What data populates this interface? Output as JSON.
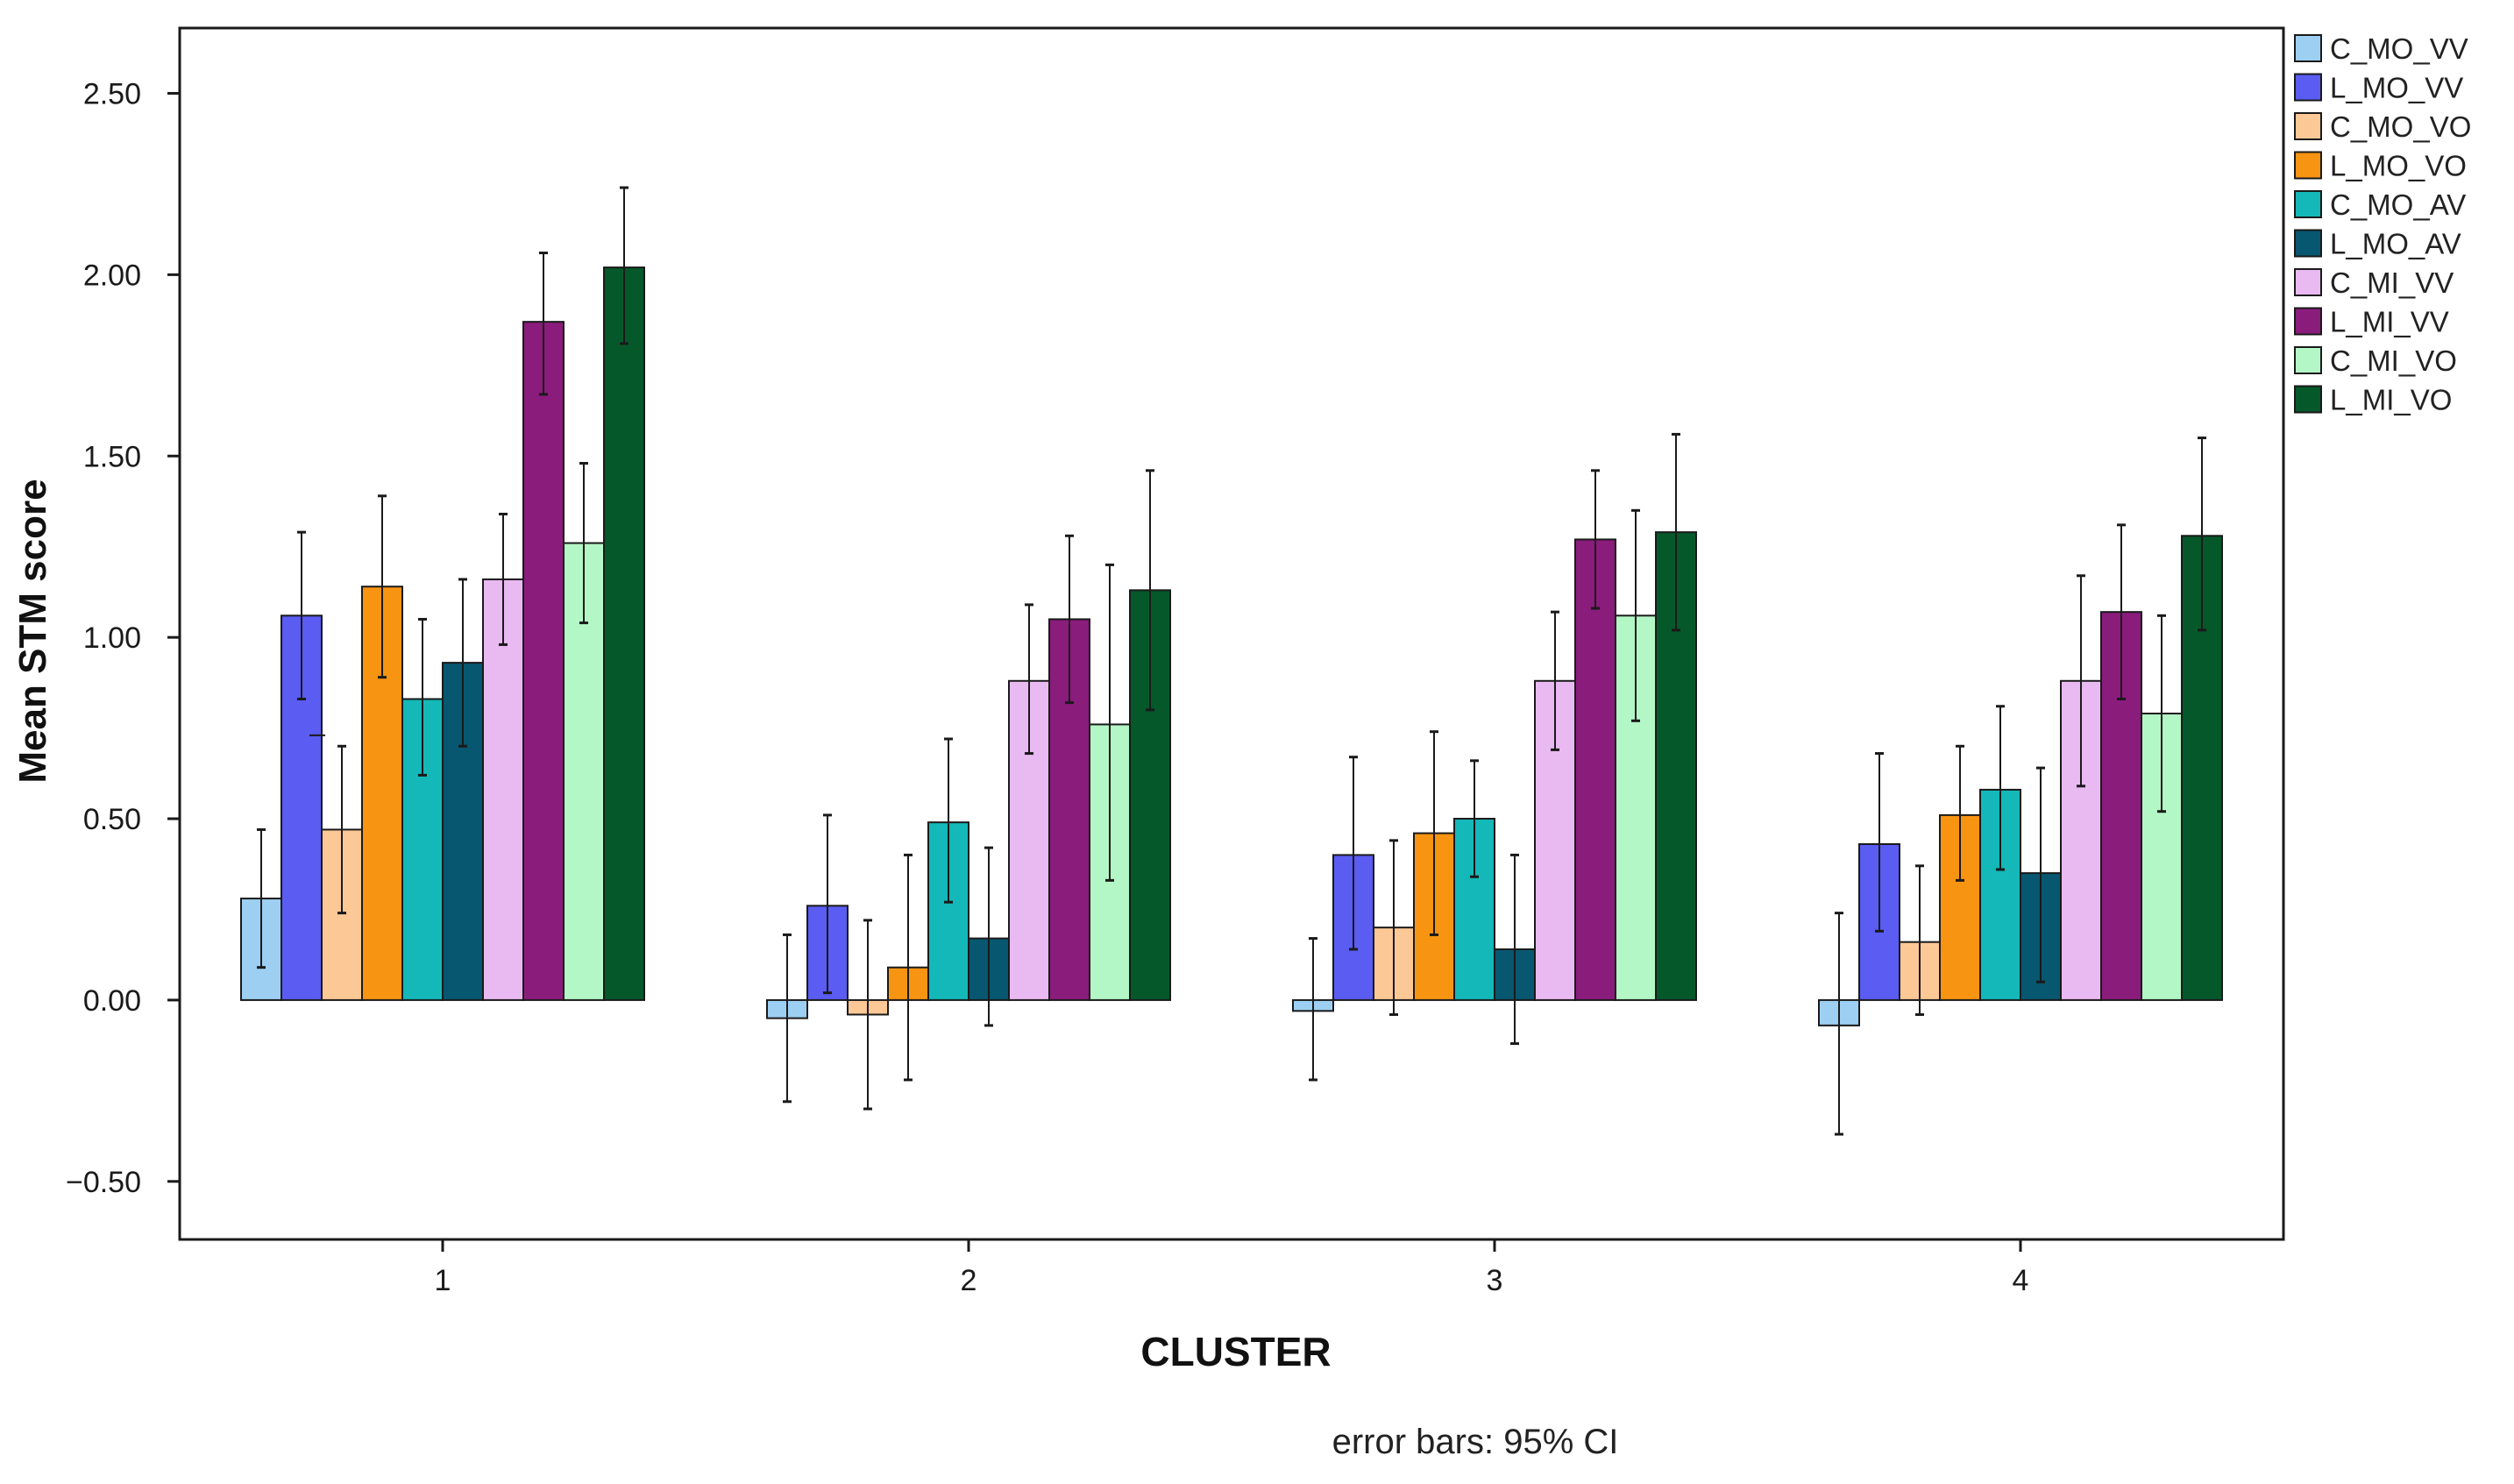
{
  "chart_data": {
    "type": "bar",
    "title": "",
    "xlabel": "CLUSTER",
    "ylabel": "Mean STM score",
    "note": "error bars: 95% CI",
    "ylim": [
      -0.66,
      2.68
    ],
    "yticks": [
      -0.5,
      0.0,
      0.5,
      1.0,
      1.5,
      2.0,
      2.5
    ],
    "ytick_labels": [
      "−0.50",
      "0.00",
      "0.50",
      "1.00",
      "1.50",
      "2.00",
      "2.50"
    ],
    "categories": [
      "1",
      "2",
      "3",
      "4"
    ],
    "legend_position": "right, outside plot",
    "series": [
      {
        "name": "C_MO_VV",
        "color": "#9dcff2",
        "values": [
          0.28,
          -0.05,
          -0.03,
          -0.07
        ],
        "ci_low": [
          0.09,
          -0.28,
          -0.22,
          -0.37
        ],
        "ci_high": [
          0.47,
          0.18,
          0.17,
          0.24
        ]
      },
      {
        "name": "L_MO_VV",
        "color": "#5a5cf2",
        "values": [
          1.06,
          0.26,
          0.4,
          0.43
        ],
        "ci_low": [
          0.83,
          0.02,
          0.14,
          0.19
        ],
        "ci_high": [
          1.29,
          0.51,
          0.67,
          0.68
        ]
      },
      {
        "name": "C_MO_VO",
        "color": "#fcc896",
        "values": [
          0.47,
          -0.04,
          0.2,
          0.16
        ],
        "ci_low": [
          0.24,
          -0.3,
          -0.04,
          -0.04
        ],
        "ci_high": [
          0.7,
          0.22,
          0.44,
          0.37
        ]
      },
      {
        "name": "L_MO_VO",
        "color": "#f79412",
        "values": [
          1.14,
          0.09,
          0.46,
          0.51
        ],
        "ci_low": [
          0.89,
          -0.22,
          0.18,
          0.33
        ],
        "ci_high": [
          1.39,
          0.4,
          0.74,
          0.7
        ]
      },
      {
        "name": "C_MO_AV",
        "color": "#14b8b8",
        "values": [
          0.83,
          0.49,
          0.5,
          0.58
        ],
        "ci_low": [
          0.62,
          0.27,
          0.34,
          0.36
        ],
        "ci_high": [
          1.05,
          0.72,
          0.66,
          0.81
        ]
      },
      {
        "name": "L_MO_AV",
        "color": "#075770",
        "values": [
          0.93,
          0.17,
          0.14,
          0.35
        ],
        "ci_low": [
          0.7,
          -0.07,
          -0.12,
          0.05
        ],
        "ci_high": [
          1.16,
          0.42,
          0.4,
          0.64
        ]
      },
      {
        "name": "C_MI_VV",
        "color": "#e9b9f2",
        "values": [
          1.16,
          0.88,
          0.88,
          0.88
        ],
        "ci_low": [
          0.98,
          0.68,
          0.69,
          0.59
        ],
        "ci_high": [
          1.34,
          1.09,
          1.07,
          1.17
        ]
      },
      {
        "name": "L_MI_VV",
        "color": "#8a1c7c",
        "values": [
          1.87,
          1.05,
          1.27,
          1.07
        ],
        "ci_low": [
          1.67,
          0.82,
          1.08,
          0.83
        ],
        "ci_high": [
          2.06,
          1.28,
          1.46,
          1.31
        ]
      },
      {
        "name": "C_MI_VO",
        "color": "#b4f7c6",
        "values": [
          1.26,
          0.76,
          1.06,
          0.79
        ],
        "ci_low": [
          1.04,
          0.33,
          0.77,
          0.52
        ],
        "ci_high": [
          1.48,
          1.2,
          1.35,
          1.06
        ]
      },
      {
        "name": "L_MI_VO",
        "color": "#05582a",
        "values": [
          2.02,
          1.13,
          1.29,
          1.28
        ],
        "ci_low": [
          1.81,
          0.8,
          1.02,
          1.02
        ],
        "ci_high": [
          2.24,
          1.46,
          1.56,
          1.55
        ]
      }
    ]
  }
}
